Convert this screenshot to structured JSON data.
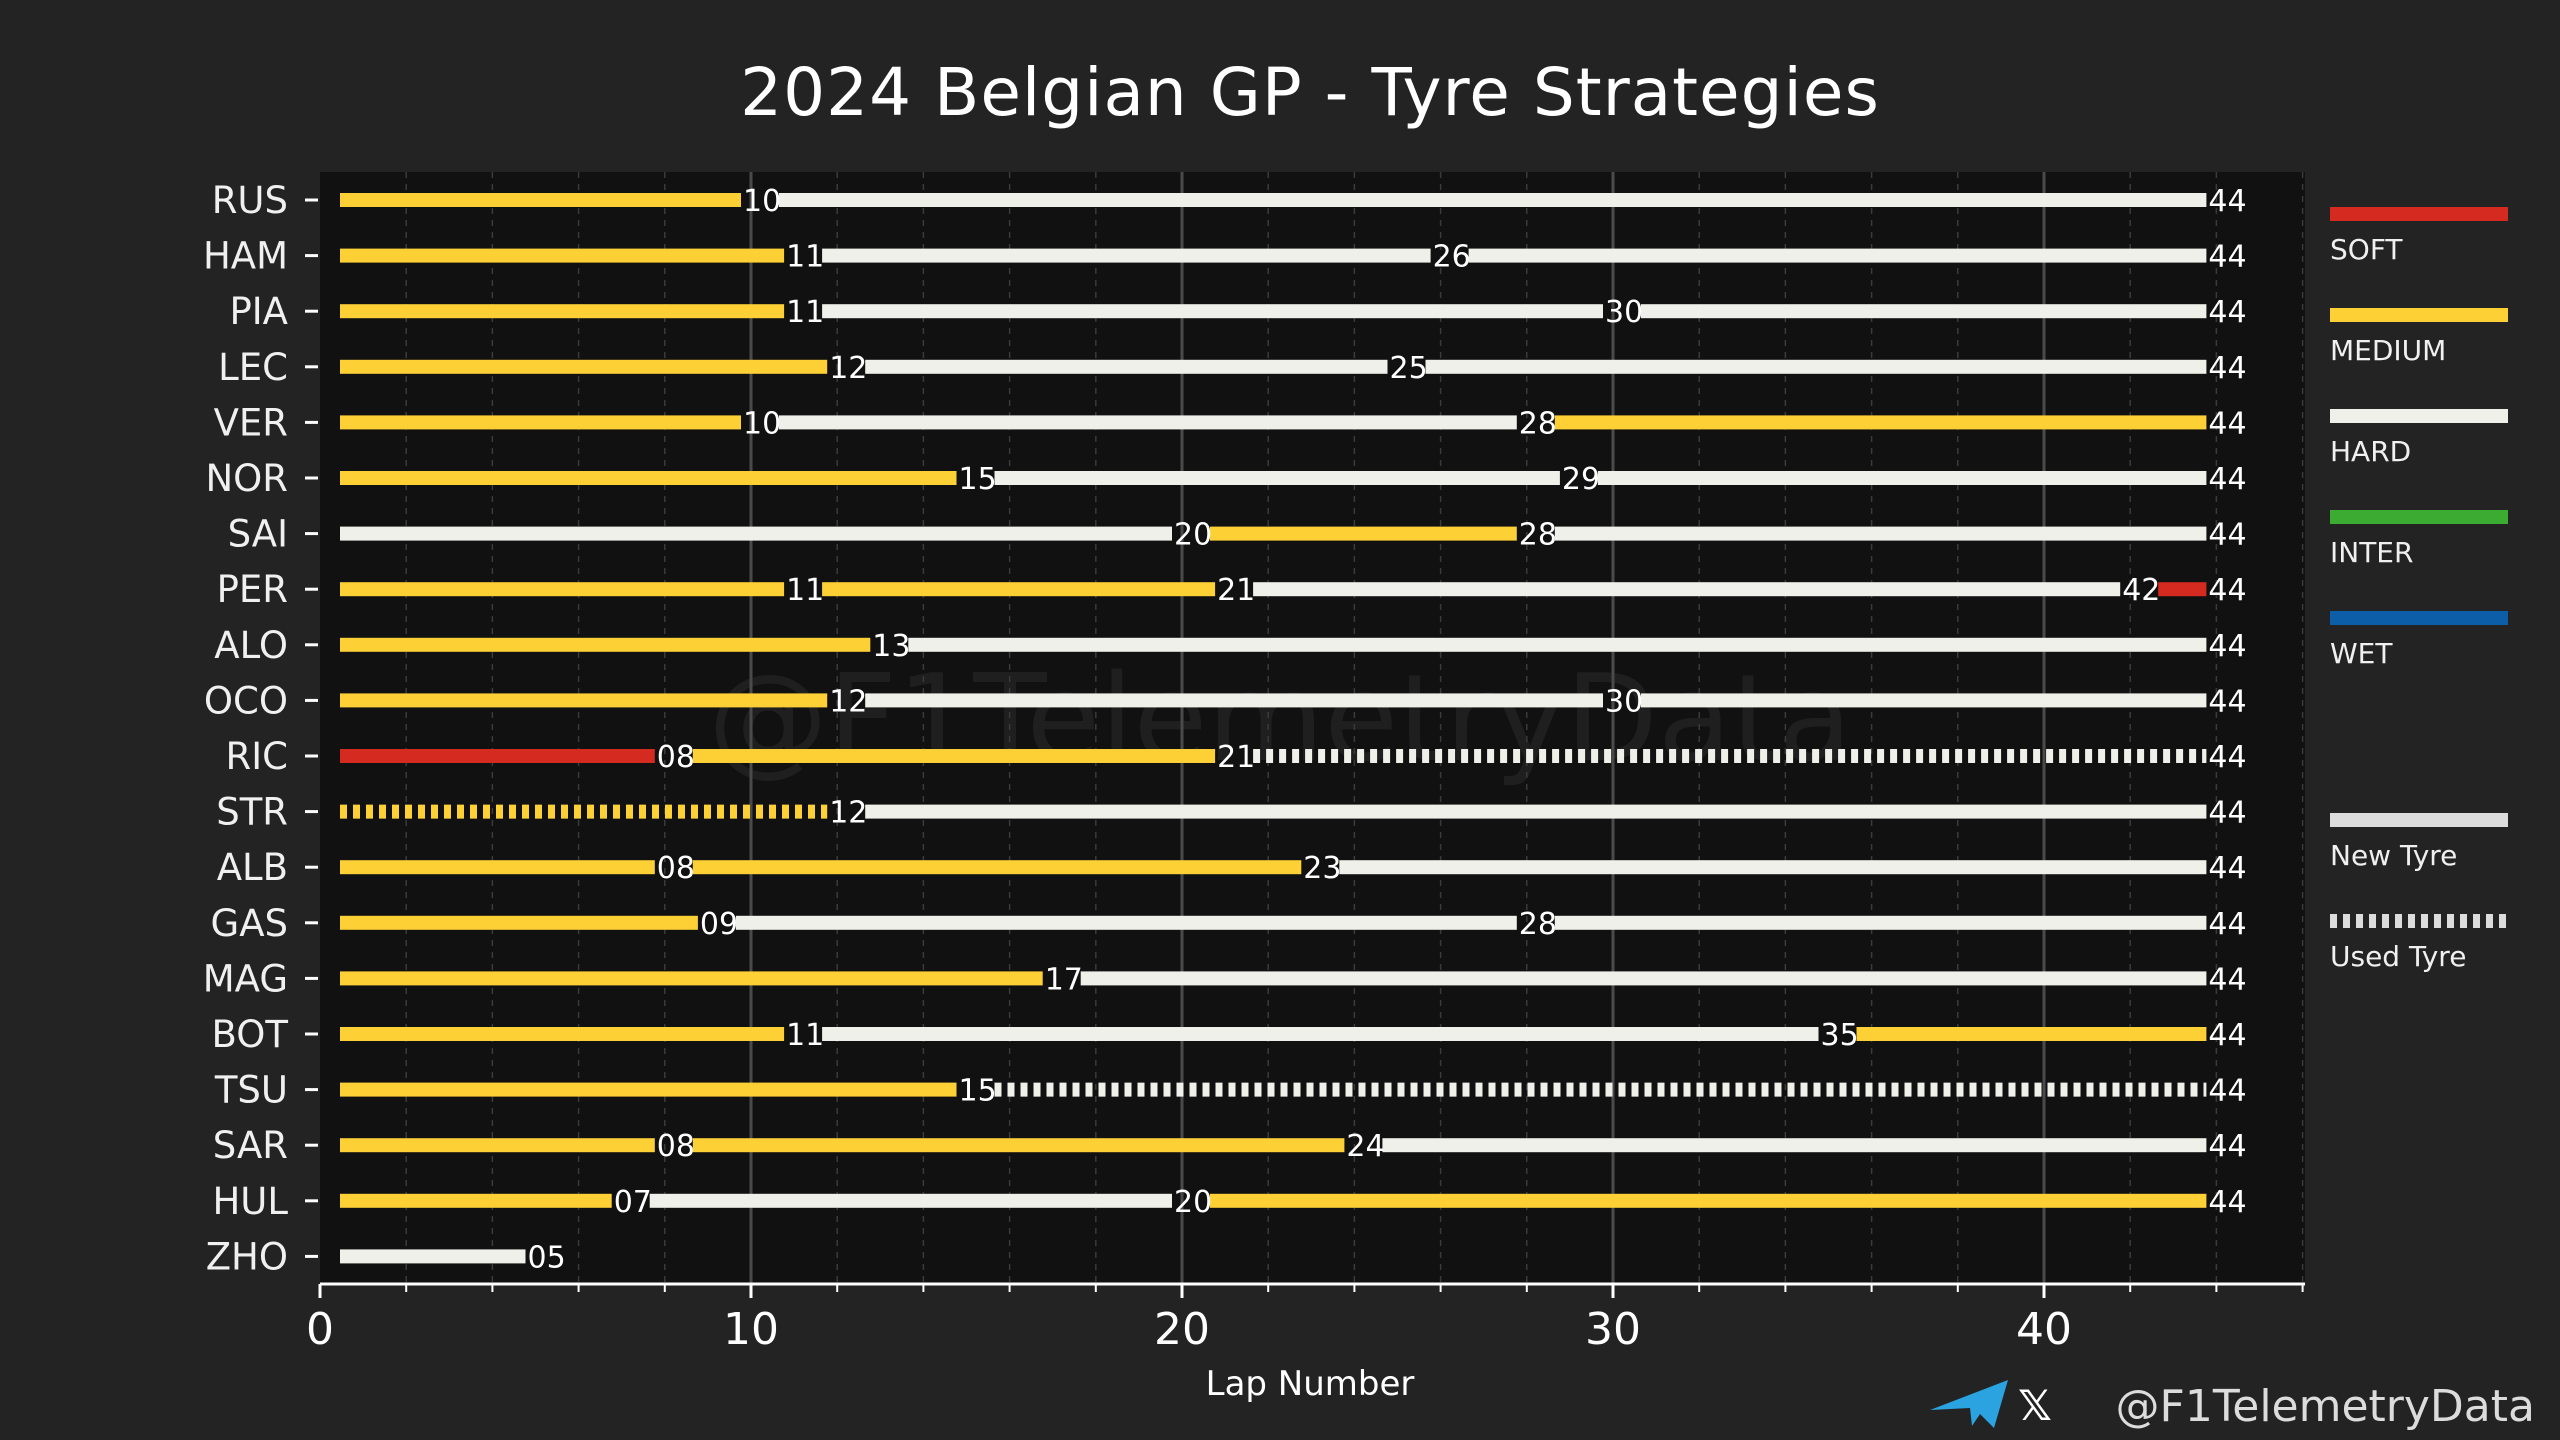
{
  "chart_data": {
    "type": "bar",
    "orientation": "horizontal-stacked",
    "title": "2024 Belgian GP - Tyre Strategies",
    "xlabel": "Lap Number",
    "ylabel": "",
    "xlim": [
      0,
      46
    ],
    "x_ticks": [
      0,
      10,
      20,
      30,
      40
    ],
    "grid": "vertical",
    "legend_position": "right",
    "watermark": "@F1TelemetryData",
    "credit": "@F1TelemetryData",
    "compounds": [
      {
        "name": "SOFT",
        "color": "#d42a20"
      },
      {
        "name": "MEDIUM",
        "color": "#fdd136"
      },
      {
        "name": "HARD",
        "color": "#f0f0ea"
      },
      {
        "name": "INTER",
        "color": "#3cab32"
      },
      {
        "name": "WET",
        "color": "#0d5ea8"
      }
    ],
    "tyre_state_legend": [
      {
        "name": "New Tyre",
        "style": "solid",
        "color": "#dcdcdc"
      },
      {
        "name": "Used Tyre",
        "style": "dashed",
        "color": "#dcdcdc"
      }
    ],
    "drivers": [
      {
        "name": "RUS",
        "stints": [
          {
            "compound": "MEDIUM",
            "end": 10,
            "label": "10",
            "used": false
          },
          {
            "compound": "HARD",
            "end": 44,
            "label": "44",
            "used": false
          }
        ]
      },
      {
        "name": "HAM",
        "stints": [
          {
            "compound": "MEDIUM",
            "end": 11,
            "label": "11",
            "used": false
          },
          {
            "compound": "HARD",
            "end": 26,
            "label": "26",
            "used": false
          },
          {
            "compound": "HARD",
            "end": 44,
            "label": "44",
            "used": false
          }
        ]
      },
      {
        "name": "PIA",
        "stints": [
          {
            "compound": "MEDIUM",
            "end": 11,
            "label": "11",
            "used": false
          },
          {
            "compound": "HARD",
            "end": 30,
            "label": "30",
            "used": false
          },
          {
            "compound": "HARD",
            "end": 44,
            "label": "44",
            "used": false
          }
        ]
      },
      {
        "name": "LEC",
        "stints": [
          {
            "compound": "MEDIUM",
            "end": 12,
            "label": "12",
            "used": false
          },
          {
            "compound": "HARD",
            "end": 25,
            "label": "25",
            "used": false
          },
          {
            "compound": "HARD",
            "end": 44,
            "label": "44",
            "used": false
          }
        ]
      },
      {
        "name": "VER",
        "stints": [
          {
            "compound": "MEDIUM",
            "end": 10,
            "label": "10",
            "used": false
          },
          {
            "compound": "HARD",
            "end": 28,
            "label": "28",
            "used": false
          },
          {
            "compound": "MEDIUM",
            "end": 44,
            "label": "44",
            "used": false
          }
        ]
      },
      {
        "name": "NOR",
        "stints": [
          {
            "compound": "MEDIUM",
            "end": 15,
            "label": "15",
            "used": false
          },
          {
            "compound": "HARD",
            "end": 29,
            "label": "29",
            "used": false
          },
          {
            "compound": "HARD",
            "end": 44,
            "label": "44",
            "used": false
          }
        ]
      },
      {
        "name": "SAI",
        "stints": [
          {
            "compound": "HARD",
            "end": 20,
            "label": "20",
            "used": false
          },
          {
            "compound": "MEDIUM",
            "end": 28,
            "label": "28",
            "used": false
          },
          {
            "compound": "HARD",
            "end": 44,
            "label": "44",
            "used": false
          }
        ]
      },
      {
        "name": "PER",
        "stints": [
          {
            "compound": "MEDIUM",
            "end": 11,
            "label": "11",
            "used": false
          },
          {
            "compound": "MEDIUM",
            "end": 21,
            "label": "21",
            "used": false
          },
          {
            "compound": "HARD",
            "end": 42,
            "label": "42",
            "used": false
          },
          {
            "compound": "SOFT",
            "end": 44,
            "label": "44",
            "used": false
          }
        ]
      },
      {
        "name": "ALO",
        "stints": [
          {
            "compound": "MEDIUM",
            "end": 13,
            "label": "13",
            "used": false
          },
          {
            "compound": "HARD",
            "end": 44,
            "label": "44",
            "used": false
          }
        ]
      },
      {
        "name": "OCO",
        "stints": [
          {
            "compound": "MEDIUM",
            "end": 12,
            "label": "12",
            "used": false
          },
          {
            "compound": "HARD",
            "end": 30,
            "label": "30",
            "used": false
          },
          {
            "compound": "HARD",
            "end": 44,
            "label": "44",
            "used": false
          }
        ]
      },
      {
        "name": "RIC",
        "stints": [
          {
            "compound": "SOFT",
            "end": 8,
            "label": "08",
            "used": false
          },
          {
            "compound": "MEDIUM",
            "end": 21,
            "label": "21",
            "used": false
          },
          {
            "compound": "HARD",
            "end": 44,
            "label": "44",
            "used": true
          }
        ]
      },
      {
        "name": "STR",
        "stints": [
          {
            "compound": "MEDIUM",
            "end": 12,
            "label": "12",
            "used": true
          },
          {
            "compound": "HARD",
            "end": 44,
            "label": "44",
            "used": false
          }
        ]
      },
      {
        "name": "ALB",
        "stints": [
          {
            "compound": "MEDIUM",
            "end": 8,
            "label": "08",
            "used": false
          },
          {
            "compound": "MEDIUM",
            "end": 23,
            "label": "23",
            "used": false
          },
          {
            "compound": "HARD",
            "end": 44,
            "label": "44",
            "used": false
          }
        ]
      },
      {
        "name": "GAS",
        "stints": [
          {
            "compound": "MEDIUM",
            "end": 9,
            "label": "09",
            "used": false
          },
          {
            "compound": "HARD",
            "end": 28,
            "label": "28",
            "used": false
          },
          {
            "compound": "HARD",
            "end": 44,
            "label": "44",
            "used": false
          }
        ]
      },
      {
        "name": "MAG",
        "stints": [
          {
            "compound": "MEDIUM",
            "end": 17,
            "label": "17",
            "used": false
          },
          {
            "compound": "HARD",
            "end": 44,
            "label": "44",
            "used": false
          }
        ]
      },
      {
        "name": "BOT",
        "stints": [
          {
            "compound": "MEDIUM",
            "end": 11,
            "label": "11",
            "used": false
          },
          {
            "compound": "HARD",
            "end": 35,
            "label": "35",
            "used": false
          },
          {
            "compound": "MEDIUM",
            "end": 44,
            "label": "44",
            "used": false
          }
        ]
      },
      {
        "name": "TSU",
        "stints": [
          {
            "compound": "MEDIUM",
            "end": 15,
            "label": "15",
            "used": false
          },
          {
            "compound": "HARD",
            "end": 44,
            "label": "44",
            "used": true
          }
        ]
      },
      {
        "name": "SAR",
        "stints": [
          {
            "compound": "MEDIUM",
            "end": 8,
            "label": "08",
            "used": false
          },
          {
            "compound": "MEDIUM",
            "end": 24,
            "label": "24",
            "used": false
          },
          {
            "compound": "HARD",
            "end": 44,
            "label": "44",
            "used": false
          }
        ]
      },
      {
        "name": "HUL",
        "stints": [
          {
            "compound": "MEDIUM",
            "end": 7,
            "label": "07",
            "used": false
          },
          {
            "compound": "HARD",
            "end": 20,
            "label": "20",
            "used": false
          },
          {
            "compound": "MEDIUM",
            "end": 44,
            "label": "44",
            "used": false
          }
        ]
      },
      {
        "name": "ZHO",
        "stints": [
          {
            "compound": "HARD",
            "end": 5,
            "label": "05",
            "used": false
          }
        ]
      }
    ]
  },
  "colors": {
    "background": "#232323",
    "plot_background": "#111111",
    "grid": "#444444",
    "accent_telegram": "#2aa3e0"
  },
  "icons": {
    "telegram": "telegram-icon",
    "x": "x-logo-icon"
  },
  "credit_x_glyph": "𝕏"
}
